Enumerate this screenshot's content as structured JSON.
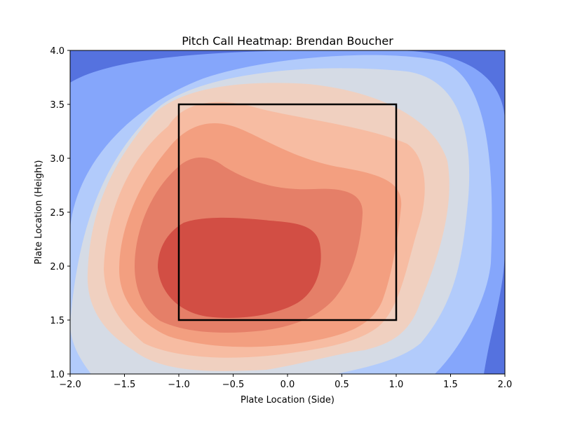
{
  "chart_data": {
    "type": "heatmap",
    "title": "Pitch Call Heatmap: Brendan Boucher",
    "xlabel": "Plate Location (Side)",
    "ylabel": "Plate Location (Height)",
    "xlim": [
      -2.0,
      2.0
    ],
    "ylim": [
      1.0,
      4.0
    ],
    "x_ticks": [
      "−2.0",
      "−1.5",
      "−1.0",
      "−0.5",
      "0.0",
      "0.5",
      "1.0",
      "1.5",
      "2.0"
    ],
    "y_ticks": [
      "1.0",
      "1.5",
      "2.0",
      "2.5",
      "3.0",
      "3.5",
      "4.0"
    ],
    "colormap": "coolwarm",
    "density_peak": {
      "x": -0.55,
      "y": 2.05
    },
    "level_colors": [
      "#5572df",
      "#85a6fb",
      "#b2cbfb",
      "#d5dbe5",
      "#f0d0c0",
      "#f7bca2",
      "#f39f80",
      "#e57f68",
      "#d24e44"
    ],
    "strike_zone": {
      "x": [
        -1.0,
        1.0
      ],
      "y": [
        1.5,
        3.5
      ]
    }
  }
}
